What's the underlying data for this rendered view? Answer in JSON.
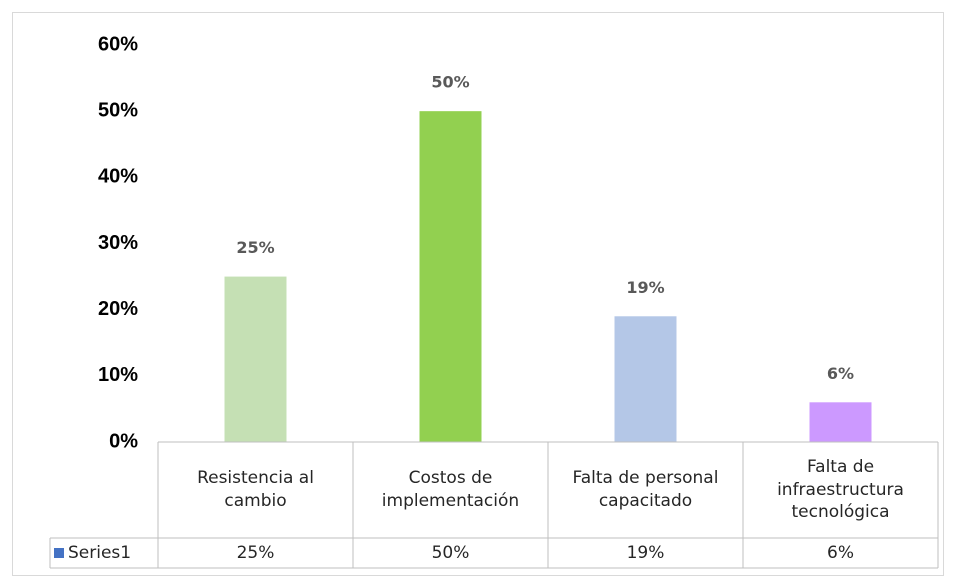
{
  "chart_data": {
    "type": "bar",
    "categories": [
      "Resistencia al cambio",
      "Costos de implementación",
      "Falta de personal capacitado",
      "Falta de infraestructura tecnológica"
    ],
    "series": [
      {
        "name": "Series1",
        "color": "#4472c4",
        "colors": [
          "#c5e0b4",
          "#92d050",
          "#b4c7e7",
          "#cc99ff"
        ],
        "values": [
          25,
          50,
          19,
          6
        ],
        "value_labels": [
          "25%",
          "50%",
          "19%",
          "6%"
        ]
      }
    ],
    "ylim": [
      0,
      60
    ],
    "yticks": [
      {
        "value": 0,
        "label": "0%"
      },
      {
        "value": 10,
        "label": "10%"
      },
      {
        "value": 20,
        "label": "20%"
      },
      {
        "value": 30,
        "label": "30%"
      },
      {
        "value": 40,
        "label": "40%"
      },
      {
        "value": 50,
        "label": "50%"
      },
      {
        "value": 60,
        "label": "60%"
      }
    ],
    "grid": false
  }
}
